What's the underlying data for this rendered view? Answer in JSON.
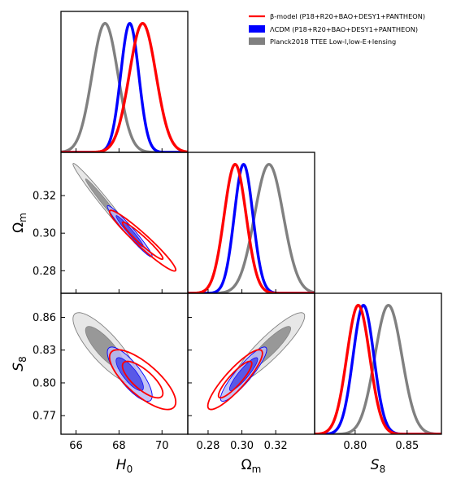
{
  "chart_data": {
    "type": "triangle-corner",
    "legend_position": "top-right",
    "legend": [
      {
        "label": "β-model (P18+R20+BAO+DESY1+PANTHEON)",
        "color": "#ff0000",
        "style": "line"
      },
      {
        "label": "ΛCDM (P18+R20+BAO+DESY1+PANTHEON)",
        "color": "#0000ff",
        "style": "patch"
      },
      {
        "label": "Planck2018 TTEE Low-l,low-E+lensing",
        "color": "#808080",
        "style": "patch"
      }
    ],
    "parameters": [
      {
        "key": "H0",
        "label_main": "H",
        "label_sub": "0",
        "range": [
          65.3,
          71.2
        ],
        "ticks": [
          "66",
          "68",
          "70"
        ]
      },
      {
        "key": "Om",
        "label_main": "Ω",
        "label_sub": "m",
        "range": [
          0.268,
          0.343
        ],
        "ticks": [
          "0.28",
          "0.30",
          "0.32"
        ]
      },
      {
        "key": "S8",
        "label_main": "S",
        "label_sub": "8",
        "range": [
          0.753,
          0.882
        ],
        "ticks": [
          "0.77",
          "0.80",
          "0.83",
          "0.86"
        ],
        "diag_ticks": [
          "0.80",
          "0.85"
        ],
        "diag_range": [
          0.761,
          0.883
        ]
      }
    ],
    "series": [
      {
        "name": "β-model (P18+R20+BAO+DESY1+PANTHEON)",
        "color": "#ff0000",
        "kind": "unfilled",
        "mean": {
          "H0": 69.1,
          "Om": 0.296,
          "S8": 0.803
        },
        "sigma": {
          "H0": 0.62,
          "Om": 0.0065,
          "S8": 0.011
        },
        "corr": {
          "H0_Om": -0.96,
          "H0_S8": -0.75,
          "Om_S8": 0.88
        }
      },
      {
        "name": "ΛCDM (P18+R20+BAO+DESY1+PANTHEON)",
        "color": "#0000ff",
        "kind": "filled",
        "mean": {
          "H0": 68.5,
          "Om": 0.301,
          "S8": 0.808
        },
        "sigma": {
          "H0": 0.42,
          "Om": 0.0055,
          "S8": 0.01
        },
        "corr": {
          "H0_Om": -0.97,
          "H0_S8": -0.8,
          "Om_S8": 0.9
        }
      },
      {
        "name": "Planck2018 TTEE Low-l,low-E+lensing",
        "color": "#808080",
        "kind": "filled",
        "mean": {
          "H0": 67.35,
          "Om": 0.316,
          "S8": 0.832
        },
        "sigma": {
          "H0": 0.6,
          "Om": 0.0085,
          "S8": 0.013
        },
        "corr": {
          "H0_Om": -0.985,
          "H0_S8": -0.82,
          "Om_S8": 0.9
        }
      }
    ]
  }
}
